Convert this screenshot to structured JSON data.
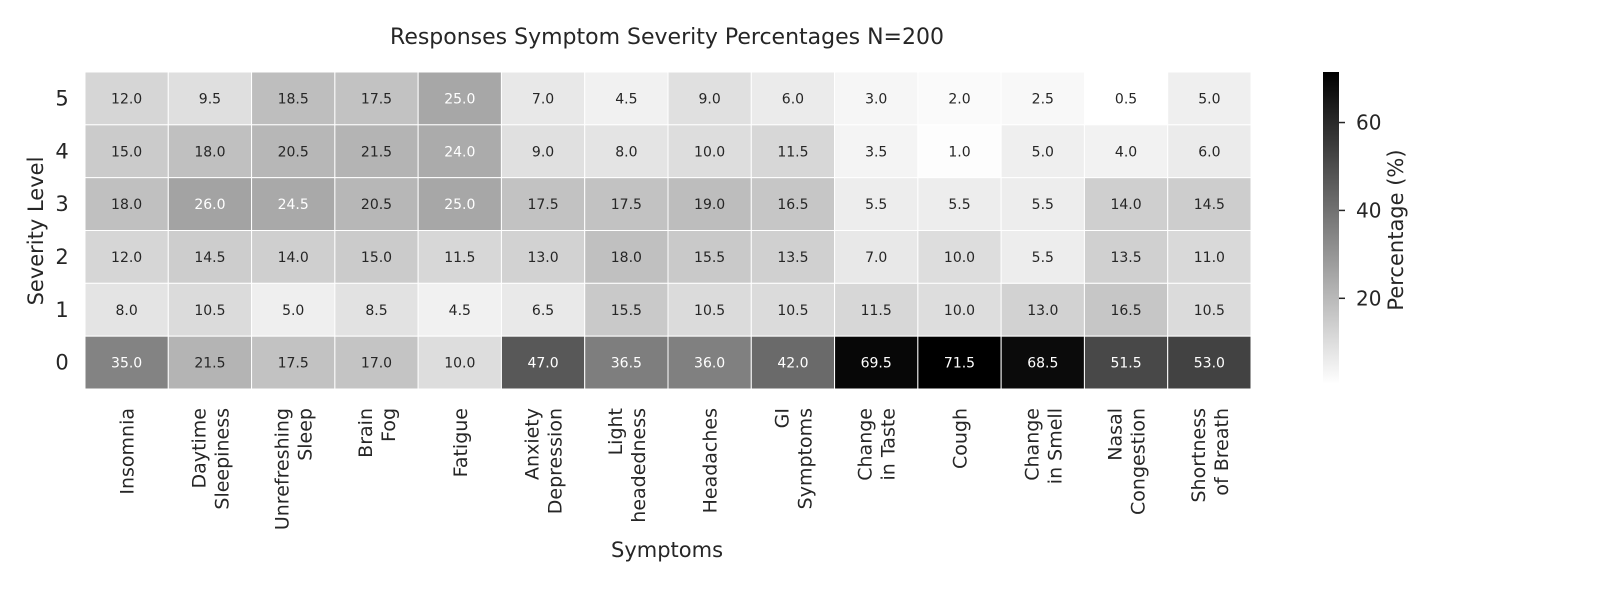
{
  "chart_data": {
    "type": "heatmap",
    "title": "Responses Symptom Severity Percentages N=200",
    "xlabel": "Symptoms",
    "ylabel": "Severity Level",
    "x_categories": [
      [
        "Insomnia"
      ],
      [
        "Daytime",
        "Sleepiness"
      ],
      [
        "Unrefreshing",
        "Sleep"
      ],
      [
        "Brain",
        "Fog"
      ],
      [
        "Fatigue"
      ],
      [
        "Anxiety",
        "Depression"
      ],
      [
        "Light",
        "headedness"
      ],
      [
        "Headaches"
      ],
      [
        "GI",
        "Symptoms"
      ],
      [
        "Change",
        "in Taste"
      ],
      [
        "Cough"
      ],
      [
        "Change",
        "in Smell"
      ],
      [
        "Nasal",
        "Congestion"
      ],
      [
        "Shortness",
        "of Breath"
      ]
    ],
    "y_categories": [
      "5",
      "4",
      "3",
      "2",
      "1",
      "0"
    ],
    "values": [
      [
        12.0,
        9.5,
        18.5,
        17.5,
        25.0,
        7.0,
        4.5,
        9.0,
        6.0,
        3.0,
        2.0,
        2.5,
        0.5,
        5.0
      ],
      [
        15.0,
        18.0,
        20.5,
        21.5,
        24.0,
        9.0,
        8.0,
        10.0,
        11.5,
        3.5,
        1.0,
        5.0,
        4.0,
        6.0
      ],
      [
        18.0,
        26.0,
        24.5,
        20.5,
        25.0,
        17.5,
        17.5,
        19.0,
        16.5,
        5.5,
        5.5,
        5.5,
        14.0,
        14.5
      ],
      [
        12.0,
        14.5,
        14.0,
        15.0,
        11.5,
        13.0,
        18.0,
        15.5,
        13.5,
        7.0,
        10.0,
        5.5,
        13.5,
        11.0
      ],
      [
        8.0,
        10.5,
        5.0,
        8.5,
        4.5,
        6.5,
        15.5,
        10.5,
        10.5,
        11.5,
        10.0,
        13.0,
        16.5,
        10.5
      ],
      [
        35.0,
        21.5,
        17.5,
        17.0,
        10.0,
        47.0,
        36.5,
        36.0,
        42.0,
        69.5,
        71.5,
        68.5,
        51.5,
        53.0
      ]
    ],
    "colorbar": {
      "label": "Percentage (%)",
      "ticks": [
        20,
        40,
        60
      ],
      "range": [
        0.5,
        71.5
      ],
      "colormap": "greys",
      "low_color": "#ffffff",
      "high_color": "#000000"
    },
    "value_format": "one-decimal",
    "grid": false
  }
}
